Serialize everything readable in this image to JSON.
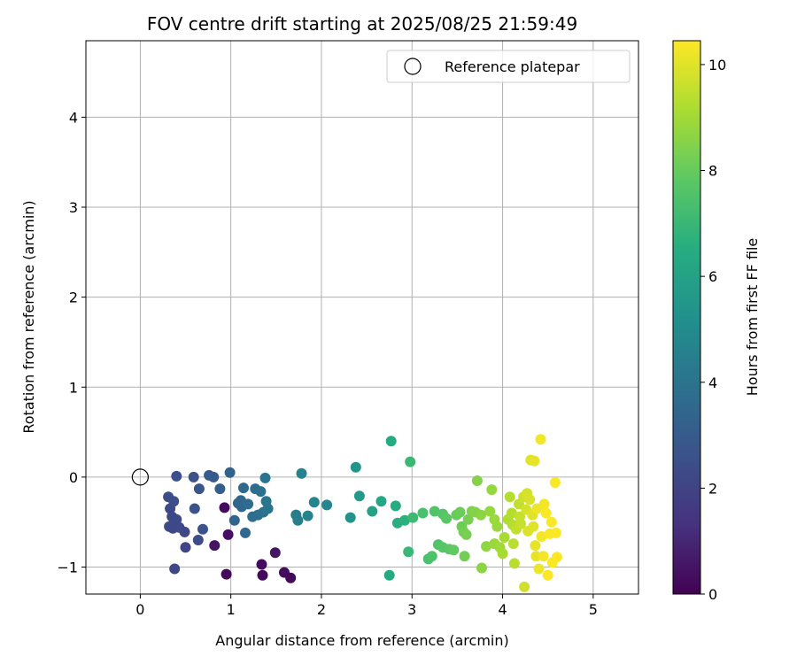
{
  "chart_data": {
    "type": "scatter",
    "title": "FOV centre drift starting at 2025/08/25 21:59:49",
    "xlabel": "Angular distance from reference (arcmin)",
    "ylabel": "Rotation from reference (arcmin)",
    "xlim": [
      -0.6,
      5.5
    ],
    "ylim": [
      -1.3,
      4.85
    ],
    "xticks": [
      0,
      1,
      2,
      3,
      4,
      5
    ],
    "yticks": [
      -1,
      0,
      1,
      2,
      3,
      4
    ],
    "grid": true,
    "legend": {
      "placement": "upper right",
      "entries": [
        "Reference platepar"
      ]
    },
    "reference_point": {
      "x": 0,
      "y": 0,
      "label": "Reference platepar"
    },
    "colorbar": {
      "label": "Hours from first FF file",
      "range": [
        0,
        10.45
      ],
      "ticks": [
        0,
        2,
        4,
        6,
        8,
        10
      ],
      "colormap": "viridis"
    },
    "points": [
      [
        0.93,
        -0.34,
        0.3
      ],
      [
        0.97,
        -0.64,
        0.4
      ],
      [
        0.82,
        -0.76,
        0.5
      ],
      [
        0.95,
        -1.08,
        0.2
      ],
      [
        1.34,
        -0.97,
        0.3
      ],
      [
        1.35,
        -1.09,
        0.2
      ],
      [
        1.49,
        -0.84,
        0.5
      ],
      [
        1.59,
        -1.06,
        0.3
      ],
      [
        1.66,
        -1.12,
        0.2
      ],
      [
        0.31,
        -0.22,
        2.4
      ],
      [
        0.33,
        -0.35,
        2.3
      ],
      [
        0.37,
        -0.27,
        2.4
      ],
      [
        0.35,
        -0.44,
        2.2
      ],
      [
        0.4,
        -0.47,
        2.3
      ],
      [
        0.43,
        -0.56,
        2.3
      ],
      [
        0.32,
        -0.55,
        2.4
      ],
      [
        0.36,
        -0.57,
        2.2
      ],
      [
        0.49,
        -0.61,
        2.2
      ],
      [
        0.5,
        -0.78,
        2.1
      ],
      [
        0.38,
        -1.02,
        2.2
      ],
      [
        0.4,
        0.01,
        2.5
      ],
      [
        0.59,
        0.0,
        2.6
      ],
      [
        0.6,
        -0.35,
        2.7
      ],
      [
        0.64,
        -0.7,
        2.4
      ],
      [
        0.69,
        -0.58,
        2.6
      ],
      [
        0.65,
        -0.13,
        2.8
      ],
      [
        0.76,
        0.02,
        2.9
      ],
      [
        0.81,
        0.0,
        3.0
      ],
      [
        0.88,
        -0.13,
        3.1
      ],
      [
        0.99,
        0.05,
        3.2
      ],
      [
        1.04,
        -0.48,
        3.4
      ],
      [
        1.08,
        -0.29,
        3.4
      ],
      [
        1.12,
        -0.33,
        3.5
      ],
      [
        1.11,
        -0.26,
        3.5
      ],
      [
        1.14,
        -0.12,
        3.6
      ],
      [
        1.16,
        -0.62,
        3.6
      ],
      [
        1.19,
        -0.3,
        3.7
      ],
      [
        1.24,
        -0.44,
        3.7
      ],
      [
        1.27,
        -0.13,
        3.8
      ],
      [
        1.3,
        -0.42,
        3.8
      ],
      [
        1.33,
        -0.16,
        3.9
      ],
      [
        1.36,
        -0.39,
        3.9
      ],
      [
        1.38,
        -0.01,
        4.0
      ],
      [
        1.39,
        -0.27,
        4.1
      ],
      [
        1.41,
        -0.35,
        4.1
      ],
      [
        1.72,
        -0.42,
        4.4
      ],
      [
        1.74,
        -0.48,
        4.5
      ],
      [
        1.78,
        0.04,
        4.6
      ],
      [
        1.85,
        -0.43,
        4.6
      ],
      [
        1.92,
        -0.28,
        4.7
      ],
      [
        2.06,
        -0.31,
        4.8
      ],
      [
        2.32,
        -0.45,
        5.3
      ],
      [
        2.38,
        0.11,
        5.4
      ],
      [
        2.42,
        -0.21,
        5.6
      ],
      [
        2.56,
        -0.38,
        6.0
      ],
      [
        2.66,
        -0.27,
        6.2
      ],
      [
        2.75,
        -1.09,
        6.4
      ],
      [
        2.77,
        0.4,
        6.4
      ],
      [
        2.82,
        -0.32,
        6.5
      ],
      [
        2.84,
        -0.51,
        6.6
      ],
      [
        2.92,
        -0.48,
        6.7
      ],
      [
        2.96,
        -0.83,
        7.0
      ],
      [
        2.98,
        0.17,
        7.0
      ],
      [
        3.01,
        -0.45,
        7.1
      ],
      [
        3.12,
        -0.4,
        7.4
      ],
      [
        3.18,
        -0.91,
        7.4
      ],
      [
        3.22,
        -0.88,
        7.5
      ],
      [
        3.25,
        -0.38,
        7.6
      ],
      [
        3.29,
        -0.75,
        7.6
      ],
      [
        3.34,
        -0.41,
        7.7
      ],
      [
        3.34,
        -0.78,
        7.7
      ],
      [
        3.38,
        -0.46,
        7.8
      ],
      [
        3.41,
        -0.8,
        7.8
      ],
      [
        3.46,
        -0.81,
        7.9
      ],
      [
        3.49,
        -0.42,
        8.0
      ],
      [
        3.53,
        -0.39,
        8.1
      ],
      [
        3.55,
        -0.55,
        8.1
      ],
      [
        3.57,
        -0.61,
        8.2
      ],
      [
        3.58,
        -0.88,
        8.2
      ],
      [
        3.6,
        -0.64,
        8.3
      ],
      [
        3.62,
        -0.47,
        8.3
      ],
      [
        3.66,
        -0.38,
        8.4
      ],
      [
        3.7,
        -0.39,
        8.5
      ],
      [
        3.72,
        -0.04,
        8.5
      ],
      [
        3.76,
        -0.42,
        8.6
      ],
      [
        3.77,
        -1.01,
        8.6
      ],
      [
        3.82,
        -0.77,
        8.7
      ],
      [
        3.86,
        -0.38,
        8.8
      ],
      [
        3.88,
        -0.14,
        8.8
      ],
      [
        3.91,
        -0.47,
        8.9
      ],
      [
        3.91,
        -0.74,
        8.9
      ],
      [
        3.94,
        -0.55,
        8.9
      ],
      [
        3.97,
        -0.78,
        9.0
      ],
      [
        4.0,
        -0.85,
        9.1
      ],
      [
        4.02,
        -0.67,
        9.1
      ],
      [
        4.06,
        -0.47,
        9.2
      ],
      [
        4.08,
        -0.22,
        9.3
      ],
      [
        4.1,
        -0.4,
        9.3
      ],
      [
        4.11,
        -0.53,
        9.3
      ],
      [
        4.12,
        -0.74,
        9.4
      ],
      [
        4.13,
        -0.96,
        9.4
      ],
      [
        4.15,
        -0.58,
        9.5
      ],
      [
        4.18,
        -0.3,
        9.5
      ],
      [
        4.19,
        -0.44,
        9.6
      ],
      [
        4.2,
        -0.52,
        9.6
      ],
      [
        4.23,
        -0.22,
        9.7
      ],
      [
        4.24,
        -1.22,
        9.7
      ],
      [
        4.26,
        -0.36,
        9.8
      ],
      [
        4.27,
        -0.18,
        9.8
      ],
      [
        4.28,
        -0.6,
        9.9
      ],
      [
        4.3,
        -0.25,
        9.9
      ],
      [
        4.31,
        0.19,
        10.0
      ],
      [
        4.33,
        -0.42,
        10.0
      ],
      [
        4.34,
        -0.55,
        10.0
      ],
      [
        4.35,
        0.18,
        10.1
      ],
      [
        4.36,
        -0.76,
        10.1
      ],
      [
        4.37,
        -0.88,
        10.1
      ],
      [
        4.38,
        -0.35,
        10.2
      ],
      [
        4.4,
        -1.02,
        10.2
      ],
      [
        4.42,
        0.42,
        10.3
      ],
      [
        4.43,
        -0.66,
        10.3
      ],
      [
        4.45,
        -0.88,
        10.3
      ],
      [
        4.46,
        -0.3,
        10.3
      ],
      [
        4.48,
        -0.4,
        10.4
      ],
      [
        4.5,
        -1.09,
        10.4
      ],
      [
        4.52,
        -0.63,
        10.4
      ],
      [
        4.54,
        -0.5,
        10.4
      ],
      [
        4.55,
        -0.95,
        10.4
      ],
      [
        4.58,
        -0.06,
        10.4
      ],
      [
        4.59,
        -0.62,
        10.4
      ],
      [
        4.6,
        -0.89,
        10.4
      ]
    ]
  }
}
